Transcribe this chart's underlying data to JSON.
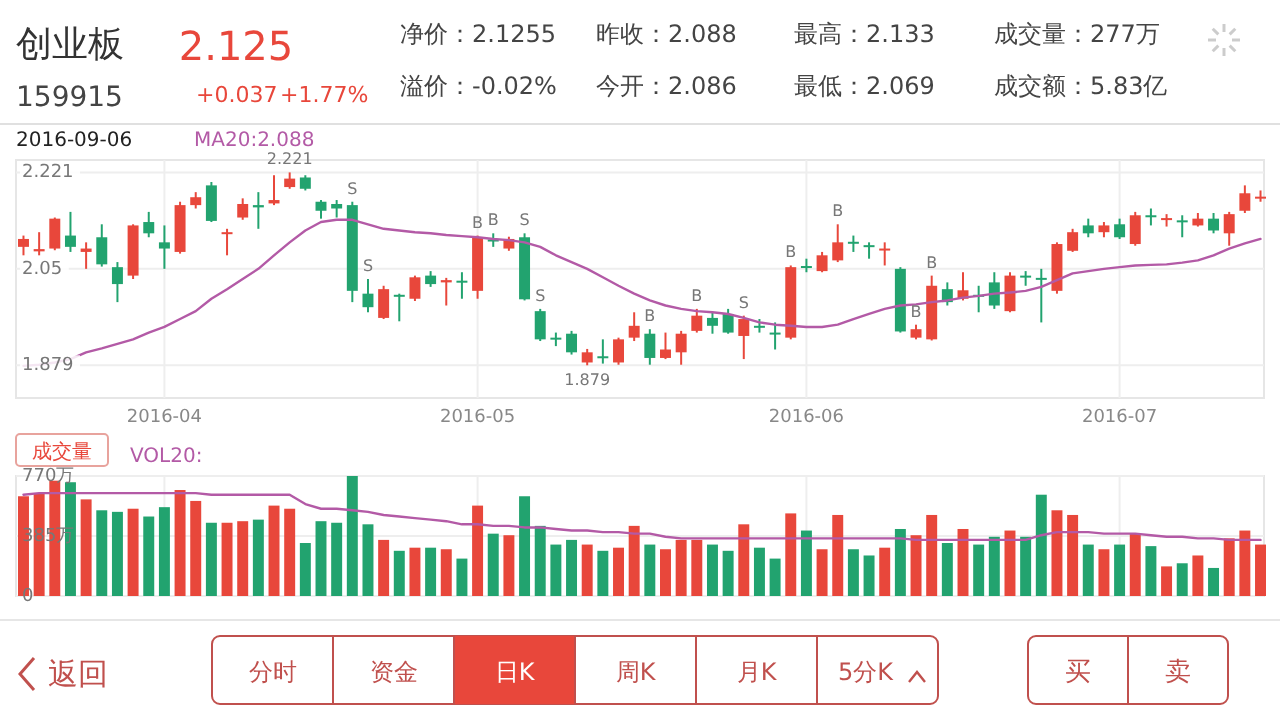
{
  "chart_data": [
    {
      "type": "candlestick",
      "title": "创业板",
      "subtitle": "159915",
      "categories": [
        null,
        null,
        null,
        null,
        null,
        null,
        null,
        null,
        null,
        "2016-04",
        null,
        null,
        null,
        null,
        null,
        null,
        null,
        null,
        null,
        null,
        null,
        null,
        null,
        null,
        null,
        null,
        null,
        null,
        null,
        "2016-05",
        null,
        null,
        null,
        null,
        null,
        null,
        null,
        null,
        null,
        null,
        null,
        null,
        null,
        null,
        null,
        null,
        null,
        null,
        null,
        null,
        "2016-06",
        null,
        null,
        null,
        null,
        null,
        null,
        null,
        null,
        null,
        null,
        null,
        null,
        null,
        null,
        null,
        null,
        null,
        null,
        null,
        "2016-07",
        null,
        null,
        null,
        null,
        null,
        null,
        null,
        null,
        null
      ],
      "ohlc": [
        [
          2.089,
          2.109,
          2.074,
          2.103
        ],
        [
          2.081,
          2.115,
          2.074,
          2.085
        ],
        [
          2.086,
          2.141,
          2.083,
          2.139
        ],
        [
          2.109,
          2.151,
          2.08,
          2.089
        ],
        [
          2.08,
          2.097,
          2.05,
          2.086
        ],
        [
          2.106,
          2.129,
          2.054,
          2.058
        ],
        [
          2.053,
          2.062,
          1.991,
          2.023
        ],
        [
          2.038,
          2.129,
          2.032,
          2.127
        ],
        [
          2.133,
          2.151,
          2.106,
          2.113
        ],
        [
          2.097,
          2.127,
          2.05,
          2.086
        ],
        [
          2.08,
          2.169,
          2.077,
          2.163
        ],
        [
          2.163,
          2.186,
          2.157,
          2.177
        ],
        [
          2.198,
          2.204,
          2.133,
          2.135
        ],
        [
          2.113,
          2.121,
          2.074,
          2.115
        ],
        [
          2.141,
          2.175,
          2.137,
          2.165
        ],
        [
          2.163,
          2.186,
          2.121,
          2.159
        ],
        [
          2.166,
          2.216,
          2.163,
          2.172
        ],
        [
          2.195,
          2.221,
          2.192,
          2.21
        ],
        [
          2.212,
          2.216,
          2.189,
          2.192
        ],
        [
          2.169,
          2.172,
          2.139,
          2.153
        ],
        [
          2.165,
          2.172,
          2.141,
          2.157
        ],
        [
          2.163,
          2.169,
          1.991,
          2.011
        ],
        [
          2.006,
          2.032,
          1.973,
          1.982
        ],
        [
          1.963,
          2.02,
          1.961,
          2.014
        ],
        [
          2.004,
          2.006,
          1.957,
          2.002
        ],
        [
          1.997,
          2.038,
          1.993,
          2.035
        ],
        [
          2.038,
          2.046,
          2.018,
          2.023
        ],
        [
          2.026,
          2.034,
          1.985,
          2.03
        ],
        [
          2.029,
          2.044,
          1.997,
          2.028
        ],
        [
          2.011,
          2.109,
          1.997,
          2.106
        ],
        [
          2.102,
          2.113,
          2.089,
          2.1
        ],
        [
          2.086,
          2.107,
          2.082,
          2.103
        ],
        [
          2.106,
          2.113,
          1.994,
          1.996
        ],
        [
          1.975,
          1.979,
          1.922,
          1.925
        ],
        [
          1.928,
          1.937,
          1.913,
          1.927
        ],
        [
          1.935,
          1.94,
          1.898,
          1.902
        ],
        [
          1.884,
          1.908,
          1.879,
          1.902
        ],
        [
          1.895,
          1.925,
          1.882,
          1.893
        ],
        [
          1.884,
          1.928,
          1.88,
          1.925
        ],
        [
          1.928,
          1.973,
          1.922,
          1.949
        ],
        [
          1.935,
          1.943,
          1.88,
          1.892
        ],
        [
          1.892,
          1.937,
          1.89,
          1.907
        ],
        [
          1.902,
          1.94,
          1.88,
          1.935
        ],
        [
          1.94,
          1.979,
          1.937,
          1.967
        ],
        [
          1.963,
          1.973,
          1.935,
          1.949
        ],
        [
          1.97,
          1.979,
          1.935,
          1.937
        ],
        [
          1.931,
          1.967,
          1.89,
          1.961
        ],
        [
          1.949,
          1.961,
          1.937,
          1.948
        ],
        [
          1.937,
          1.955,
          1.907,
          1.936
        ],
        [
          1.928,
          2.056,
          1.925,
          2.053
        ],
        [
          2.055,
          2.068,
          2.044,
          2.052
        ],
        [
          2.046,
          2.08,
          2.044,
          2.074
        ],
        [
          2.065,
          2.129,
          2.062,
          2.097
        ],
        [
          2.098,
          2.109,
          2.08,
          2.095
        ],
        [
          2.092,
          2.097,
          2.068,
          2.091
        ],
        [
          2.085,
          2.097,
          2.056,
          2.086
        ],
        [
          2.05,
          2.053,
          1.937,
          1.939
        ],
        [
          1.928,
          1.951,
          1.925,
          1.943
        ],
        [
          1.925,
          2.038,
          1.923,
          2.02
        ],
        [
          2.014,
          2.026,
          1.985,
          1.991
        ],
        [
          1.997,
          2.044,
          1.994,
          2.012
        ],
        [
          2.004,
          2.02,
          1.973,
          2.003
        ],
        [
          2.026,
          2.044,
          1.979,
          1.985
        ],
        [
          1.975,
          2.044,
          1.973,
          2.038
        ],
        [
          2.038,
          2.046,
          2.02,
          2.036
        ],
        [
          2.034,
          2.05,
          1.955,
          2.032
        ],
        [
          2.011,
          2.097,
          2.006,
          2.094
        ],
        [
          2.082,
          2.121,
          2.08,
          2.115
        ],
        [
          2.127,
          2.139,
          2.106,
          2.113
        ],
        [
          2.115,
          2.133,
          2.106,
          2.127
        ],
        [
          2.129,
          2.139,
          2.103,
          2.106
        ],
        [
          2.094,
          2.151,
          2.091,
          2.145
        ],
        [
          2.145,
          2.157,
          2.127,
          2.143
        ],
        [
          2.139,
          2.147,
          2.125,
          2.14
        ],
        [
          2.136,
          2.145,
          2.106,
          2.135
        ],
        [
          2.127,
          2.149,
          2.125,
          2.139
        ],
        [
          2.139,
          2.149,
          2.113,
          2.118
        ],
        [
          2.113,
          2.151,
          2.091,
          2.147
        ],
        [
          2.153,
          2.198,
          2.149,
          2.184
        ],
        [
          2.175,
          2.189,
          2.169,
          2.178
        ]
      ],
      "colors": [
        "#e8473b",
        "#e8473b",
        "#e8473b",
        "#22a36f",
        "#e8473b",
        "#22a36f",
        "#22a36f",
        "#e8473b",
        "#22a36f",
        "#22a36f",
        "#e8473b",
        "#e8473b",
        "#22a36f",
        "#e8473b",
        "#e8473b",
        "#22a36f",
        "#e8473b",
        "#e8473b",
        "#22a36f",
        "#22a36f",
        "#22a36f",
        "#22a36f",
        "#22a36f",
        "#e8473b",
        "#22a36f",
        "#e8473b",
        "#22a36f",
        "#e8473b",
        "#22a36f",
        "#e8473b",
        "#22a36f",
        "#e8473b",
        "#22a36f",
        "#22a36f",
        "#22a36f",
        "#22a36f",
        "#e8473b",
        "#22a36f",
        "#e8473b",
        "#e8473b",
        "#22a36f",
        "#e8473b",
        "#e8473b",
        "#e8473b",
        "#22a36f",
        "#22a36f",
        "#e8473b",
        "#22a36f",
        "#22a36f",
        "#e8473b",
        "#22a36f",
        "#e8473b",
        "#e8473b",
        "#22a36f",
        "#22a36f",
        "#e8473b",
        "#22a36f",
        "#e8473b",
        "#e8473b",
        "#22a36f",
        "#e8473b",
        "#22a36f",
        "#22a36f",
        "#e8473b",
        "#22a36f",
        "#22a36f",
        "#e8473b",
        "#e8473b",
        "#22a36f",
        "#e8473b",
        "#22a36f",
        "#e8473b",
        "#22a36f",
        "#e8473b",
        "#22a36f",
        "#e8473b",
        "#22a36f",
        "#e8473b",
        "#e8473b",
        "#e8473b"
      ],
      "series": [
        {
          "type": "line",
          "name": "MA20:2.088",
          "color": "#b35aa6",
          "values": [
            1.878,
            1.88,
            1.884,
            1.89,
            1.902,
            1.909,
            1.917,
            1.925,
            1.937,
            1.947,
            1.961,
            1.975,
            1.997,
            2.014,
            2.032,
            2.05,
            2.074,
            2.097,
            2.118,
            2.133,
            2.137,
            2.137,
            2.129,
            2.121,
            2.118,
            2.115,
            2.113,
            2.11,
            2.108,
            2.106,
            2.103,
            2.101,
            2.097,
            2.089,
            2.074,
            2.062,
            2.05,
            2.035,
            2.02,
            2.006,
            1.994,
            1.985,
            1.979,
            1.975,
            1.973,
            1.97,
            1.963,
            1.955,
            1.951,
            1.949,
            1.947,
            1.947,
            1.951,
            1.961,
            1.97,
            1.979,
            1.985,
            1.987,
            1.991,
            1.994,
            1.999,
            2.002,
            2.006,
            2.008,
            2.011,
            2.018,
            2.03,
            2.042,
            2.046,
            2.05,
            2.053,
            2.056,
            2.057,
            2.058,
            2.061,
            2.065,
            2.074,
            2.086,
            2.095,
            2.103
          ]
        }
      ],
      "ylim": [
        1.821,
        2.243
      ],
      "yticks": [
        1.879,
        2.05,
        2.221
      ],
      "grid": true,
      "legend": "top left",
      "annotations": [
        "2.125",
        "+0.037",
        "+1.77%",
        "净价：2.1255",
        "溢价：-0.02%",
        "昨收：2.088",
        "今开：2.086",
        "最高：2.133",
        "最低：2.069",
        "成交量：277万",
        "成交额：5.83亿",
        "2016-09-06",
        "2.221",
        "1.879",
        "S",
        "S",
        "B",
        "B",
        "S",
        "S",
        "B",
        "B",
        "S",
        "B",
        "B",
        "B",
        "B"
      ]
    },
    {
      "type": "bar",
      "categories": [
        null,
        null,
        null,
        null,
        null,
        null,
        null,
        null,
        null,
        "2016-04",
        null,
        null,
        null,
        null,
        null,
        null,
        null,
        null,
        null,
        null,
        null,
        null,
        null,
        null,
        null,
        null,
        null,
        null,
        null,
        "2016-05",
        null,
        null,
        null,
        null,
        null,
        null,
        null,
        null,
        null,
        null,
        null,
        null,
        null,
        null,
        null,
        null,
        null,
        null,
        null,
        null,
        "2016-06",
        null,
        null,
        null,
        null,
        null,
        null,
        null,
        null,
        null,
        null,
        null,
        null,
        null,
        null,
        null,
        null,
        null,
        null,
        null,
        "2016-07",
        null,
        null,
        null,
        null,
        null,
        null,
        null,
        null,
        null
      ],
      "values": [
        640,
        660,
        740,
        730,
        620,
        550,
        540,
        560,
        510,
        570,
        680,
        610,
        470,
        470,
        480,
        490,
        580,
        560,
        340,
        480,
        470,
        770,
        460,
        360,
        290,
        310,
        310,
        300,
        240,
        580,
        400,
        390,
        640,
        450,
        330,
        360,
        330,
        290,
        310,
        450,
        330,
        300,
        360,
        360,
        330,
        290,
        460,
        310,
        240,
        530,
        420,
        300,
        520,
        300,
        260,
        310,
        430,
        390,
        520,
        340,
        430,
        330,
        380,
        420,
        380,
        650,
        550,
        520,
        330,
        300,
        330,
        400,
        320,
        190,
        210,
        260,
        180,
        370,
        420,
        330
      ],
      "colors": [
        "#e8473b",
        "#e8473b",
        "#e8473b",
        "#22a36f",
        "#e8473b",
        "#22a36f",
        "#22a36f",
        "#e8473b",
        "#22a36f",
        "#22a36f",
        "#e8473b",
        "#e8473b",
        "#22a36f",
        "#e8473b",
        "#e8473b",
        "#22a36f",
        "#e8473b",
        "#e8473b",
        "#22a36f",
        "#22a36f",
        "#22a36f",
        "#22a36f",
        "#22a36f",
        "#e8473b",
        "#22a36f",
        "#e8473b",
        "#22a36f",
        "#e8473b",
        "#22a36f",
        "#e8473b",
        "#22a36f",
        "#e8473b",
        "#22a36f",
        "#22a36f",
        "#22a36f",
        "#22a36f",
        "#e8473b",
        "#22a36f",
        "#e8473b",
        "#e8473b",
        "#22a36f",
        "#e8473b",
        "#e8473b",
        "#e8473b",
        "#22a36f",
        "#22a36f",
        "#e8473b",
        "#22a36f",
        "#22a36f",
        "#e8473b",
        "#22a36f",
        "#e8473b",
        "#e8473b",
        "#22a36f",
        "#22a36f",
        "#e8473b",
        "#22a36f",
        "#e8473b",
        "#e8473b",
        "#22a36f",
        "#e8473b",
        "#22a36f",
        "#22a36f",
        "#e8473b",
        "#22a36f",
        "#22a36f",
        "#e8473b",
        "#e8473b",
        "#22a36f",
        "#e8473b",
        "#22a36f",
        "#e8473b",
        "#22a36f",
        "#e8473b",
        "#22a36f",
        "#e8473b",
        "#22a36f",
        "#e8473b",
        "#e8473b",
        "#e8473b"
      ],
      "series": [
        {
          "type": "line",
          "name": "VOL20:",
          "color": "#b35aa6",
          "values": [
            650,
            660,
            660,
            660,
            660,
            660,
            660,
            660,
            660,
            660,
            660,
            660,
            650,
            650,
            650,
            650,
            650,
            650,
            590,
            560,
            560,
            550,
            540,
            520,
            510,
            500,
            490,
            480,
            460,
            460,
            450,
            450,
            440,
            440,
            430,
            420,
            420,
            410,
            410,
            400,
            400,
            380,
            370,
            370,
            370,
            370,
            370,
            370,
            370,
            370,
            370,
            370,
            370,
            370,
            370,
            370,
            370,
            360,
            360,
            360,
            360,
            360,
            360,
            360,
            360,
            390,
            410,
            410,
            410,
            400,
            400,
            400,
            390,
            380,
            380,
            370,
            370,
            360,
            360,
            360
          ]
        }
      ],
      "ylim": [
        0,
        770
      ],
      "yticks": [
        0,
        {
          "value": 385,
          "label": "385万"
        },
        {
          "value": 770,
          "label": "770万"
        }
      ],
      "tick_labels": "y",
      "grid": true,
      "legend": "top left",
      "annotations": [
        "成交量",
        "返回",
        "分时",
        "资金",
        "日K",
        "周K",
        "月K",
        "5分K",
        "买",
        "卖"
      ]
    }
  ]
}
